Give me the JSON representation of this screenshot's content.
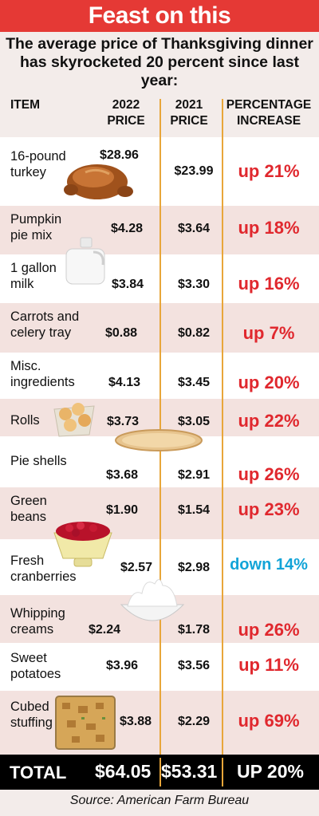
{
  "title": "Feast on this",
  "subtitle": "The average price of Thanksgiving dinner has skyrocketed 20 percent since last year:",
  "headers": {
    "item": "ITEM",
    "price_2022": [
      "2022",
      "PRICE"
    ],
    "price_2021": [
      "2021",
      "PRICE"
    ],
    "increase": [
      "PERCENTAGE",
      "INCREASE"
    ]
  },
  "chart_data": {
    "type": "table",
    "columns": [
      "ITEM",
      "2022 PRICE",
      "2021 PRICE",
      "PERCENTAGE INCREASE"
    ],
    "rows": [
      {
        "item": [
          "16-pound",
          "turkey"
        ],
        "price_2022": "$28.96",
        "price_2021": "$23.99",
        "change": "up 21%"
      },
      {
        "item": [
          "Pumpkin",
          "pie mix"
        ],
        "price_2022": "$4.28",
        "price_2021": "$3.64",
        "change": "up 18%"
      },
      {
        "item": [
          "1 gallon",
          "milk"
        ],
        "price_2022": "$3.84",
        "price_2021": "$3.30",
        "change": "up 16%"
      },
      {
        "item": [
          "Carrots and",
          "celery tray"
        ],
        "price_2022": "$0.88",
        "price_2021": "$0.82",
        "change": "up 7%"
      },
      {
        "item": [
          "Misc.",
          "ingredients"
        ],
        "price_2022": "$4.13",
        "price_2021": "$3.45",
        "change": "up 20%"
      },
      {
        "item": [
          "Rolls"
        ],
        "price_2022": "$3.73",
        "price_2021": "$3.05",
        "change": "up 22%"
      },
      {
        "item": [
          "Pie shells"
        ],
        "price_2022": "$3.68",
        "price_2021": "$2.91",
        "change": "up 26%"
      },
      {
        "item": [
          "Green",
          "beans"
        ],
        "price_2022": "$1.90",
        "price_2021": "$1.54",
        "change": "up 23%"
      },
      {
        "item": [
          "Fresh",
          "cranberries"
        ],
        "price_2022": "$2.57",
        "price_2021": "$2.98",
        "change": "down 14%"
      },
      {
        "item": [
          "Whipping",
          "creams"
        ],
        "price_2022": "$2.24",
        "price_2021": "$1.78",
        "change": "up 26%"
      },
      {
        "item": [
          "Sweet",
          "potatoes"
        ],
        "price_2022": "$3.96",
        "price_2021": "$3.56",
        "change": "up 11%"
      },
      {
        "item": [
          "Cubed",
          "stuffing"
        ],
        "price_2022": "$3.88",
        "price_2021": "$2.29",
        "change": "up 69%"
      }
    ],
    "total": {
      "label": "TOTAL",
      "price_2022": "$64.05",
      "price_2021": "$53.31",
      "change": "UP 20%"
    }
  },
  "colors": {
    "banner": "#e53935",
    "increase_text": "#e0282e",
    "decrease_text": "#12a4d8",
    "divider": "#e8a63a",
    "total_bar": "#000000"
  },
  "icons": [
    "turkey-icon",
    "milk-jug-icon",
    "rolls-basket-icon",
    "pie-shell-icon",
    "cranberry-colander-icon",
    "whipped-cream-bowl-icon",
    "stuffing-pan-icon"
  ],
  "source": "Source: American Farm Bureau"
}
